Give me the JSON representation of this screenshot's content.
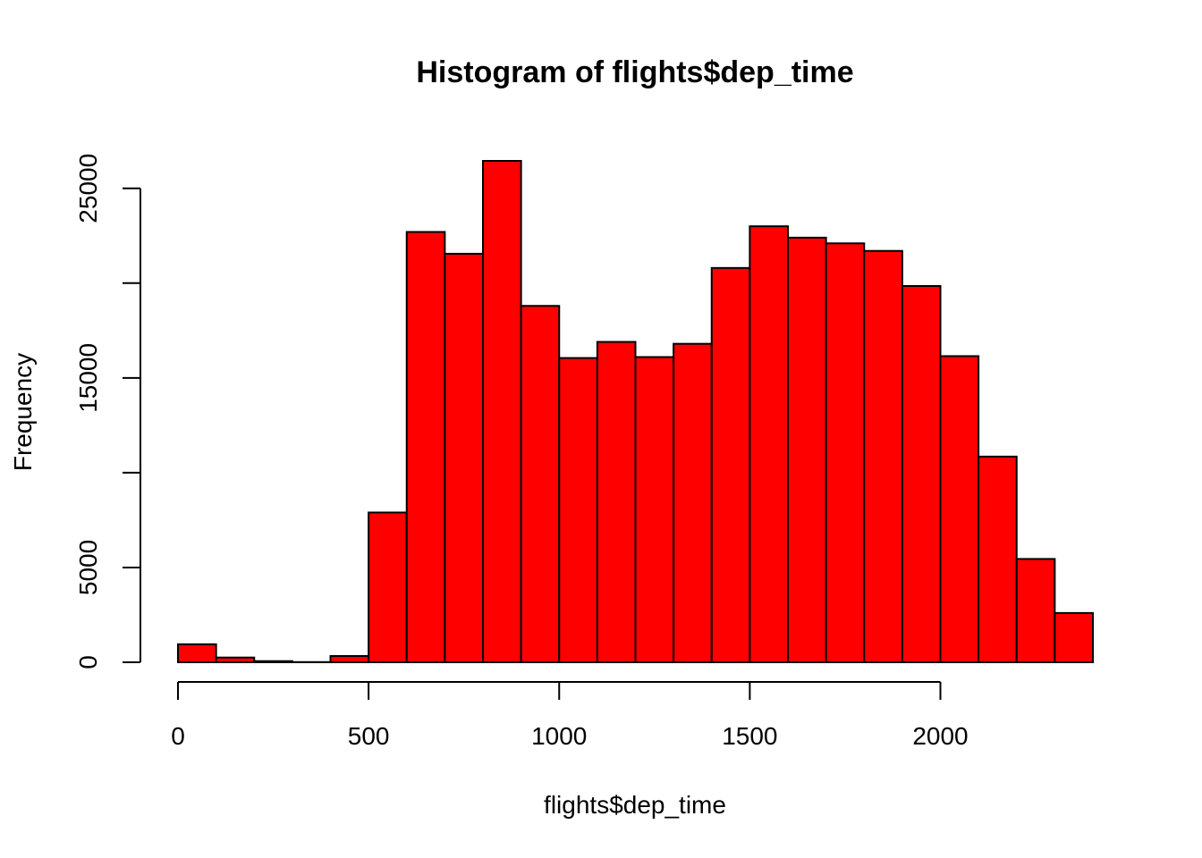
{
  "chart_data": {
    "type": "bar",
    "title": "Histogram of flights$dep_time",
    "xlabel": "flights$dep_time",
    "ylabel": "Frequency",
    "bins": [
      {
        "from": 0,
        "to": 100,
        "count": 950
      },
      {
        "from": 100,
        "to": 200,
        "count": 250
      },
      {
        "from": 200,
        "to": 300,
        "count": 60
      },
      {
        "from": 300,
        "to": 400,
        "count": 10
      },
      {
        "from": 400,
        "to": 500,
        "count": 330
      },
      {
        "from": 500,
        "to": 600,
        "count": 7900
      },
      {
        "from": 600,
        "to": 700,
        "count": 22700
      },
      {
        "from": 700,
        "to": 800,
        "count": 21550
      },
      {
        "from": 800,
        "to": 900,
        "count": 26450
      },
      {
        "from": 900,
        "to": 1000,
        "count": 18800
      },
      {
        "from": 1000,
        "to": 1100,
        "count": 16050
      },
      {
        "from": 1100,
        "to": 1200,
        "count": 16900
      },
      {
        "from": 1200,
        "to": 1300,
        "count": 16100
      },
      {
        "from": 1300,
        "to": 1400,
        "count": 16800
      },
      {
        "from": 1400,
        "to": 1500,
        "count": 20800
      },
      {
        "from": 1500,
        "to": 1600,
        "count": 23000
      },
      {
        "from": 1600,
        "to": 1700,
        "count": 22400
      },
      {
        "from": 1700,
        "to": 1800,
        "count": 22100
      },
      {
        "from": 1800,
        "to": 1900,
        "count": 21700
      },
      {
        "from": 1900,
        "to": 2000,
        "count": 19850
      },
      {
        "from": 2000,
        "to": 2100,
        "count": 16150
      },
      {
        "from": 2100,
        "to": 2200,
        "count": 10850
      },
      {
        "from": 2200,
        "to": 2300,
        "count": 5450
      },
      {
        "from": 2300,
        "to": 2400,
        "count": 2600
      }
    ],
    "x_ticks": [
      0,
      500,
      1000,
      1500,
      2000
    ],
    "y_ticks": [
      0,
      5000,
      10000,
      15000,
      20000,
      25000
    ],
    "y_tick_labels": [
      "0",
      "5000",
      "",
      "15000",
      "",
      "25000"
    ],
    "xlim": [
      0,
      2400
    ],
    "ylim": [
      0,
      26450
    ],
    "grid": false,
    "colors": {
      "bar_fill": "#ff0000",
      "bar_border": "#000000"
    }
  }
}
